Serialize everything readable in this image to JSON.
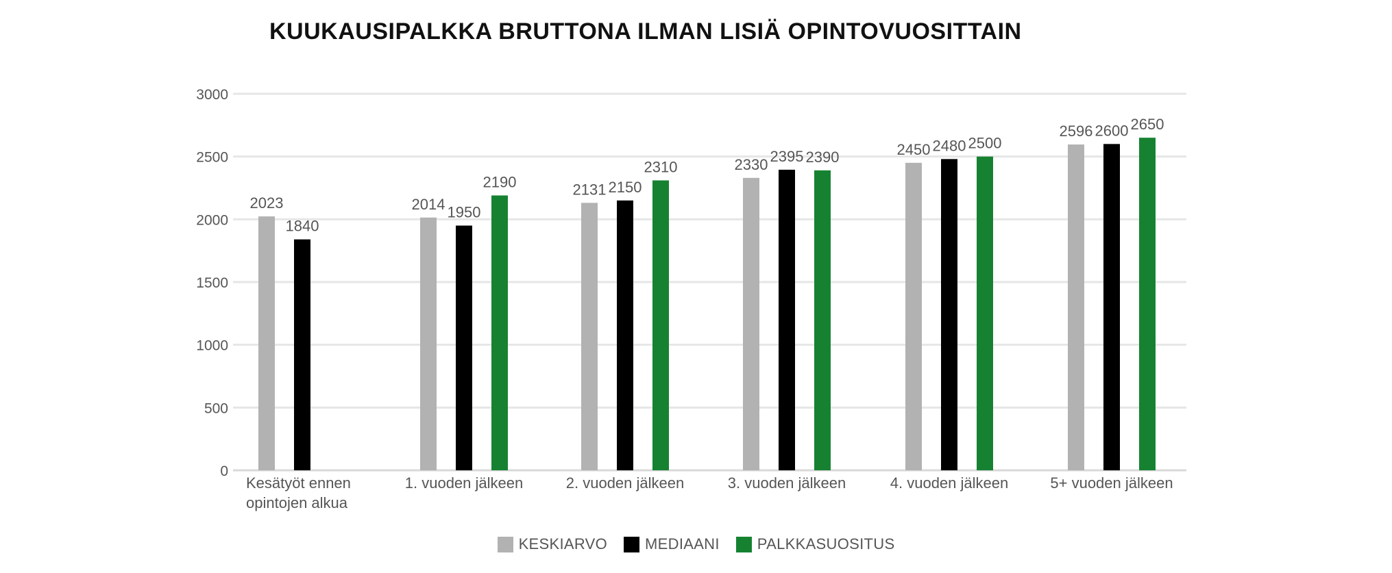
{
  "chart_data": {
    "type": "bar",
    "title": "KUUKAUSIPALKKA BRUTTONA ILMAN LISIÄ OPINTOVUOSITTAIN",
    "xlabel": "",
    "ylabel": "",
    "ylim": [
      0,
      3000
    ],
    "yticks": [
      0,
      500,
      1000,
      1500,
      2000,
      2500,
      3000
    ],
    "grid": true,
    "legend_position": "bottom",
    "categories": [
      [
        "Kesätyöt ennen",
        "opintojen alkua"
      ],
      [
        "1. vuoden jälkeen"
      ],
      [
        "2. vuoden jälkeen"
      ],
      [
        "3. vuoden jälkeen"
      ],
      [
        "4. vuoden jälkeen"
      ],
      [
        "5+ vuoden jälkeen"
      ]
    ],
    "series": [
      {
        "name": "KESKIARVO",
        "color": "#b2b2b2",
        "values": [
          2023,
          2014,
          2131,
          2330,
          2450,
          2596
        ]
      },
      {
        "name": "MEDIAANI",
        "color": "#000000",
        "values": [
          1840,
          1950,
          2150,
          2395,
          2480,
          2600
        ]
      },
      {
        "name": "PALKKASUOSITUS",
        "color": "#168231",
        "values": [
          null,
          2190,
          2310,
          2390,
          2500,
          2650
        ]
      }
    ]
  }
}
